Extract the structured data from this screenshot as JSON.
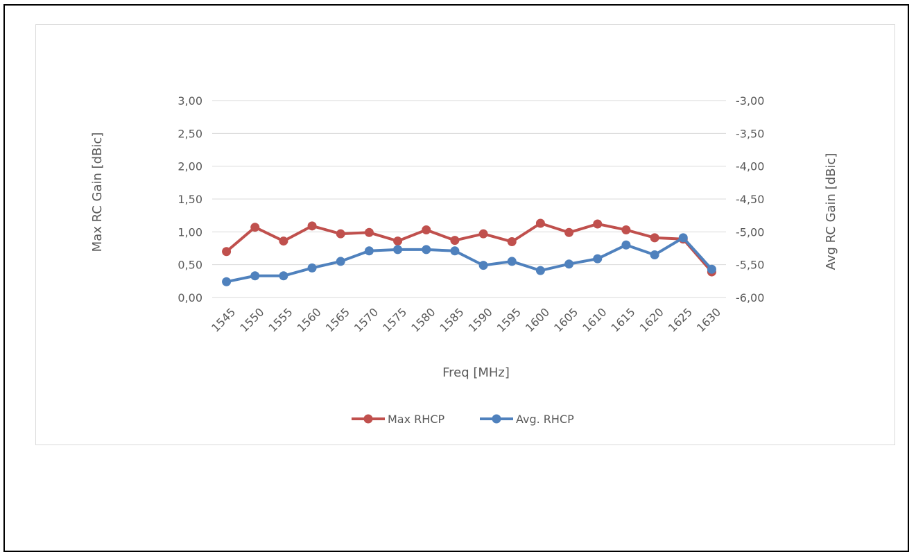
{
  "chart_data": {
    "type": "line",
    "title": "",
    "xlabel": "Freq [MHz]",
    "ylabel_left": "Max RC Gain [dBic]",
    "ylabel_right": "Avg RC Gain [dBic]",
    "categories": [
      "1545",
      "1550",
      "1555",
      "1560",
      "1565",
      "1570",
      "1575",
      "1580",
      "1585",
      "1590",
      "1595",
      "1600",
      "1605",
      "1610",
      "1615",
      "1620",
      "1625",
      "1630"
    ],
    "ylim_left": [
      0,
      3
    ],
    "ylim_right": [
      -6,
      -3
    ],
    "yticks_left": [
      "0,00",
      "0,50",
      "1,00",
      "1,50",
      "2,00",
      "2,50",
      "3,00"
    ],
    "yticks_right": [
      "-6,00",
      "-5,50",
      "-5,00",
      "-4,50",
      "-4,00",
      "-3,50",
      "-3,00"
    ],
    "grid": true,
    "legend_position": "bottom",
    "series": [
      {
        "name": "Max RHCP",
        "axis": "left",
        "color": "#c0504d",
        "values": [
          0.7,
          1.07,
          0.86,
          1.09,
          0.97,
          0.99,
          0.86,
          1.03,
          0.87,
          0.97,
          0.85,
          1.13,
          0.99,
          1.12,
          1.03,
          0.91,
          0.89,
          0.39
        ]
      },
      {
        "name": "Avg. RHCP",
        "axis": "right",
        "color": "#4f81bd",
        "values": [
          -5.76,
          -5.67,
          -5.67,
          -5.55,
          -5.45,
          -5.29,
          -5.27,
          -5.27,
          -5.29,
          -5.51,
          -5.45,
          -5.59,
          -5.49,
          -5.41,
          -5.2,
          -5.35,
          -5.09,
          -5.57
        ]
      }
    ]
  }
}
